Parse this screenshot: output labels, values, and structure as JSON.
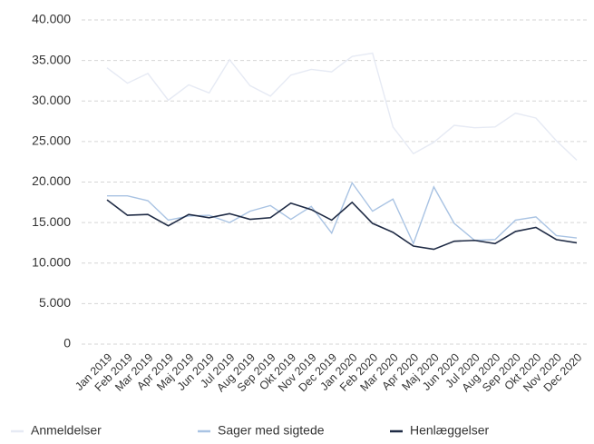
{
  "chart_data": {
    "type": "line",
    "categories": [
      "Jan 2019",
      "Feb 2019",
      "Mar 2019",
      "Apr 2019",
      "Maj 2019",
      "Jun 2019",
      "Jul 2019",
      "Aug 2019",
      "Sep 2019",
      "Okt 2019",
      "Nov 2019",
      "Dec 2019",
      "Jan 2020",
      "Feb 2020",
      "Mar 2020",
      "Apr 2020",
      "Maj 2020",
      "Jun 2020",
      "Jul 2020",
      "Aug 2020",
      "Sep 2020",
      "Okt 2020",
      "Nov 2020",
      "Dec 2020"
    ],
    "series": [
      {
        "name": "Anmeldelser",
        "color": "#e6eaf4",
        "values": [
          34100,
          32200,
          33400,
          30100,
          32000,
          31000,
          35100,
          31900,
          30600,
          33200,
          33900,
          33600,
          35500,
          35900,
          26800,
          23500,
          24900,
          27000,
          26700,
          26800,
          28500,
          27900,
          25100,
          22700
        ]
      },
      {
        "name": "Sager med sigtede",
        "color": "#a9c3e3",
        "values": [
          18300,
          18300,
          17700,
          15300,
          15800,
          15900,
          15000,
          16400,
          17100,
          15400,
          17000,
          13700,
          19900,
          16400,
          17900,
          12400,
          19400,
          14900,
          12800,
          12900,
          15300,
          15700,
          13400,
          13100
        ]
      },
      {
        "name": "Henlæggelser",
        "color": "#1f2b45",
        "values": [
          17800,
          15900,
          16000,
          14600,
          16000,
          15600,
          16100,
          15400,
          15600,
          17400,
          16600,
          15300,
          17500,
          14900,
          13800,
          12100,
          11700,
          12700,
          12800,
          12400,
          13900,
          14400,
          12900,
          12500
        ]
      }
    ],
    "ylim": [
      0,
      40000
    ],
    "yticks": [
      0,
      {
        "value": 5000,
        "label": "5.000"
      },
      {
        "value": 10000,
        "label": "10.000"
      },
      {
        "value": 15000,
        "label": "15.000"
      },
      {
        "value": 20000,
        "label": "20.000"
      },
      {
        "value": 25000,
        "label": "25.000"
      },
      {
        "value": 30000,
        "label": "30.000"
      },
      {
        "value": 35000,
        "label": "35.000"
      },
      {
        "value": 40000,
        "label": "40.000"
      }
    ],
    "grid": true,
    "legend": "bottom"
  }
}
